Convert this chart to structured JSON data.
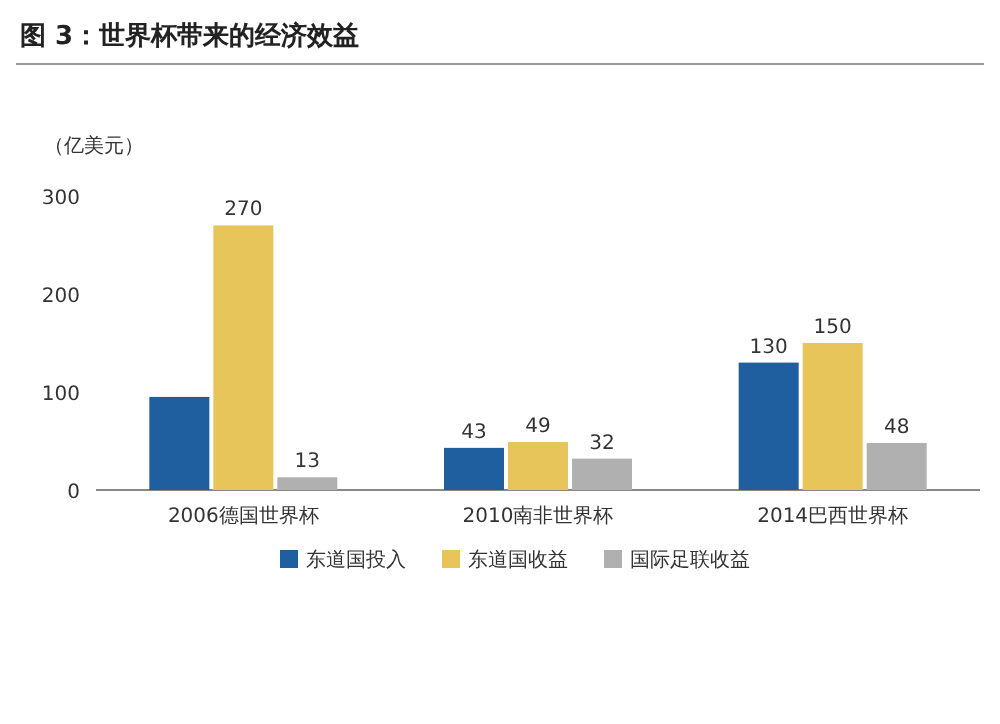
{
  "chart_data": {
    "type": "bar",
    "title": "图 3：世界杯带来的经济效益",
    "ylabel": "（亿美元）",
    "categories": [
      "2006德国世界杯",
      "2010南非世界杯",
      "2014巴西世界杯"
    ],
    "series": [
      {
        "name": "东道国投入",
        "color": "#1f5fa0",
        "values": [
          95,
          43,
          130
        ],
        "value_labels": [
          null,
          "43",
          "130"
        ]
      },
      {
        "name": "东道国收益",
        "color": "#e8c55a",
        "values": [
          270,
          49,
          150
        ],
        "value_labels": [
          "270",
          "49",
          "150"
        ]
      },
      {
        "name": "国际足联收益",
        "color": "#b0b0b0",
        "values": [
          13,
          32,
          48
        ],
        "value_labels": [
          "13",
          "32",
          "48"
        ]
      }
    ],
    "ylim": [
      0,
      300
    ],
    "yticks": [
      0,
      100,
      200,
      300
    ],
    "grid": false,
    "legend": "bottom"
  }
}
